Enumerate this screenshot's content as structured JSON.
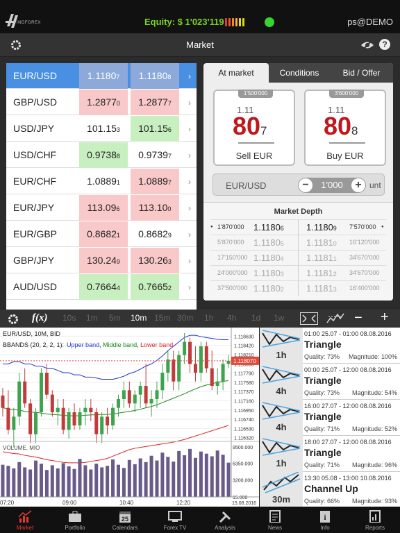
{
  "header": {
    "logo_text": "INDFOREX",
    "equity_label": "Equity: $ 1'023'119",
    "user": "ps@DEMO",
    "equity_bar_colors": [
      "#e53b2b",
      "#f05a28",
      "#f58a22",
      "#f7b51e",
      "#f2d51e",
      "#c9dd1f"
    ]
  },
  "nav": {
    "title": "Market"
  },
  "rates": [
    {
      "symbol": "EUR/USD",
      "bid_main": "1.1180",
      "bid_pip": "7",
      "ask_main": "1.1180",
      "ask_pip": "8",
      "bid_color": "none",
      "ask_color": "none",
      "selected": true
    },
    {
      "symbol": "GBP/USD",
      "bid_main": "1.2877",
      "bid_pip": "0",
      "ask_main": "1.2877",
      "ask_pip": "7",
      "bid_color": "red",
      "ask_color": "red"
    },
    {
      "symbol": "USD/JPY",
      "bid_main": "101.15",
      "bid_pip": "3",
      "ask_main": "101.15",
      "ask_pip": "6",
      "bid_color": "none",
      "ask_color": "green"
    },
    {
      "symbol": "USD/CHF",
      "bid_main": "0.9738",
      "bid_pip": "8",
      "ask_main": "0.9739",
      "ask_pip": "7",
      "bid_color": "green",
      "ask_color": "none"
    },
    {
      "symbol": "EUR/CHF",
      "bid_main": "1.0889",
      "bid_pip": "1",
      "ask_main": "1.0889",
      "ask_pip": "7",
      "bid_color": "none",
      "ask_color": "red"
    },
    {
      "symbol": "EUR/JPY",
      "bid_main": "113.09",
      "bid_pip": "6",
      "ask_main": "113.10",
      "ask_pip": "0",
      "bid_color": "red",
      "ask_color": "red"
    },
    {
      "symbol": "EUR/GBP",
      "bid_main": "0.8682",
      "bid_pip": "1",
      "ask_main": "0.8682",
      "ask_pip": "9",
      "bid_color": "red",
      "ask_color": "none"
    },
    {
      "symbol": "GBP/JPY",
      "bid_main": "130.24",
      "bid_pip": "9",
      "ask_main": "130.26",
      "ask_pip": "3",
      "bid_color": "red",
      "ask_color": "red"
    },
    {
      "symbol": "AUD/USD",
      "bid_main": "0.7664",
      "bid_pip": "4",
      "ask_main": "0.7665",
      "ask_pip": "2",
      "bid_color": "green",
      "ask_color": "green"
    }
  ],
  "order_panel": {
    "tabs": [
      "At market",
      "Conditions",
      "Bid / Offer"
    ],
    "sell": {
      "volume": "1'500'000",
      "pre": "1.11",
      "big": "80",
      "small": "7",
      "label": "Sell EUR"
    },
    "buy": {
      "volume": "3'600'000",
      "pre": "1.11",
      "big": "80",
      "small": "8",
      "label": "Buy EUR"
    },
    "amount": {
      "pair": "EUR/USD",
      "minus": "−",
      "plus": "+",
      "quantity": "1'000",
      "unit": "unt"
    }
  },
  "market_depth": {
    "title": "Market Depth",
    "rows": [
      {
        "bid_vol": "1'870'000",
        "bid_main": "1.1180",
        "bid_pip": "6",
        "ask_main": "1.1180",
        "ask_pip": "9",
        "ask_vol": "7'570'000"
      },
      {
        "bid_vol": "5'870'000",
        "bid_main": "1.1180",
        "bid_pip": "5",
        "ask_main": "1.1181",
        "ask_pip": "0",
        "ask_vol": "16'120'000"
      },
      {
        "bid_vol": "17'150'000",
        "bid_main": "1.1180",
        "bid_pip": "4",
        "ask_main": "1.1181",
        "ask_pip": "1",
        "ask_vol": "34'670'000"
      },
      {
        "bid_vol": "24'000'000",
        "bid_main": "1.1180",
        "bid_pip": "3",
        "ask_main": "1.1181",
        "ask_pip": "2",
        "ask_vol": "34'670'000"
      },
      {
        "bid_vol": "37'500'000",
        "bid_main": "1.1180",
        "bid_pip": "2",
        "ask_main": "1.1181",
        "ask_pip": "3",
        "ask_vol": "16'400'000"
      }
    ]
  },
  "chart_toolbar": {
    "fx_label": "f(x)",
    "timeframes": [
      "10s",
      "1m",
      "5m",
      "10m",
      "15m",
      "30m",
      "1h",
      "4h",
      "1d",
      "1w"
    ],
    "active_timeframe": "10m",
    "minus": "−",
    "plus": "+"
  },
  "chart_data": {
    "type": "candlestick",
    "title": "EUR/USD, 10M, BID",
    "indicator_label": "BBANDS (20, 2, 2, 1):",
    "legend": [
      {
        "name": "Upper band",
        "color": "#2233cc"
      },
      {
        "name": "Middle band",
        "color": "#1a8a1a"
      },
      {
        "name": "Lower band",
        "color": "#dd2222"
      }
    ],
    "y_ticks": [
      "1.118630",
      "1.118420",
      "1.118210",
      "1.118000",
      "1.117790",
      "1.117580",
      "1.117370",
      "1.117160",
      "1.116950",
      "1.116740",
      "1.116530",
      "1.116320"
    ],
    "current_price": "1.118070",
    "volume_label": "VOLUME, MIO",
    "volume_ticks": [
      "9500.000",
      "6350.000",
      "3200.000",
      "15.000"
    ],
    "x_ticks": [
      "07:20",
      "09:00",
      "10:40",
      "12:20"
    ],
    "date_label": "15.08.2016",
    "ylim": [
      1.1163,
      1.1187
    ],
    "candles": [
      [
        1.11728,
        1.11745,
        1.1168,
        1.117
      ],
      [
        1.117,
        1.1174,
        1.1164,
        1.1165
      ],
      [
        1.1165,
        1.117,
        1.1161,
        1.1168
      ],
      [
        1.1168,
        1.1178,
        1.1166,
        1.1176
      ],
      [
        1.1176,
        1.1179,
        1.117,
        1.1171
      ],
      [
        1.1171,
        1.1172,
        1.1162,
        1.1164
      ],
      [
        1.1164,
        1.117,
        1.1162,
        1.1169
      ],
      [
        1.1169,
        1.1179,
        1.1168,
        1.1178
      ],
      [
        1.1178,
        1.118,
        1.1172,
        1.1173
      ],
      [
        1.1173,
        1.1174,
        1.1168,
        1.1169
      ],
      [
        1.1169,
        1.1172,
        1.1166,
        1.117
      ],
      [
        1.117,
        1.1172,
        1.1164,
        1.1165
      ],
      [
        1.1165,
        1.117,
        1.1163,
        1.1169
      ],
      [
        1.1169,
        1.1171,
        1.1165,
        1.1166
      ],
      [
        1.1166,
        1.117,
        1.1165,
        1.1169
      ],
      [
        1.1169,
        1.1172,
        1.1166,
        1.117
      ],
      [
        1.117,
        1.1172,
        1.1167,
        1.1169
      ],
      [
        1.1169,
        1.117,
        1.1162,
        1.1164
      ],
      [
        1.1164,
        1.1169,
        1.1162,
        1.1168
      ],
      [
        1.1168,
        1.117,
        1.1164,
        1.1166
      ],
      [
        1.1166,
        1.1171,
        1.1165,
        1.117
      ],
      [
        1.117,
        1.1173,
        1.1168,
        1.1172
      ],
      [
        1.1172,
        1.1176,
        1.117,
        1.1174
      ],
      [
        1.1174,
        1.1176,
        1.117,
        1.1171
      ],
      [
        1.1171,
        1.1174,
        1.1169,
        1.1173
      ],
      [
        1.1173,
        1.1176,
        1.117,
        1.1175
      ],
      [
        1.1175,
        1.118,
        1.117,
        1.1171
      ],
      [
        1.1171,
        1.1174,
        1.1168,
        1.1172
      ],
      [
        1.1172,
        1.1176,
        1.117,
        1.1174
      ],
      [
        1.1174,
        1.118,
        1.1172,
        1.1178
      ],
      [
        1.1178,
        1.1183,
        1.1176,
        1.1181
      ],
      [
        1.1181,
        1.1183,
        1.1174,
        1.1176
      ],
      [
        1.1176,
        1.1183,
        1.1174,
        1.1182
      ],
      [
        1.1182,
        1.1187,
        1.118,
        1.1185
      ],
      [
        1.1185,
        1.1186,
        1.1178,
        1.118
      ],
      [
        1.118,
        1.1184,
        1.1176,
        1.1178
      ],
      [
        1.1178,
        1.1185,
        1.1176,
        1.1184
      ],
      [
        1.1184,
        1.1185,
        1.1178,
        1.1179
      ],
      [
        1.1179,
        1.1183,
        1.1174,
        1.1175
      ],
      [
        1.1175,
        1.1179,
        1.1173,
        1.1176
      ],
      [
        1.1176,
        1.1181,
        1.1174,
        1.118
      ],
      [
        1.118,
        1.1182,
        1.1179,
        1.11807
      ]
    ],
    "volumes": [
      6100,
      5900,
      5400,
      6600,
      5600,
      5200,
      6900,
      6300,
      5100,
      6000,
      5400,
      6400,
      5800,
      5300,
      7200,
      6000,
      5200,
      6300,
      5600,
      5900,
      7100,
      6100,
      5500,
      7000,
      6200,
      7300,
      6600,
      7800,
      6900,
      8400,
      7600,
      6700,
      8700,
      7900,
      9100,
      7400,
      8600,
      8200,
      7700,
      8800,
      8000,
      6500
    ],
    "bands": {
      "upper": [
        1.118,
        1.118,
        1.11805,
        1.11805,
        1.118,
        1.118,
        1.11795,
        1.11795,
        1.1179,
        1.1179,
        1.11785,
        1.1178,
        1.1178,
        1.11775,
        1.11775,
        1.1177,
        1.1177,
        1.11768,
        1.11765,
        1.11765,
        1.11765,
        1.11768,
        1.11772,
        1.11778,
        1.11782,
        1.11788,
        1.11795,
        1.118,
        1.11808,
        1.11818,
        1.1183,
        1.1184,
        1.1185,
        1.1186,
        1.11865,
        1.11865,
        1.11862,
        1.1186,
        1.11858,
        1.11856,
        1.11855,
        1.11855
      ],
      "middle": [
        1.117,
        1.11698,
        1.11696,
        1.11695,
        1.11692,
        1.1169,
        1.1169,
        1.11688,
        1.11686,
        1.11685,
        1.11684,
        1.11683,
        1.11682,
        1.11682,
        1.11682,
        1.11683,
        1.11684,
        1.11684,
        1.11685,
        1.11685,
        1.11686,
        1.11688,
        1.1169,
        1.11692,
        1.11694,
        1.11697,
        1.117,
        1.11703,
        1.11707,
        1.11712,
        1.11717,
        1.11722,
        1.11727,
        1.11732,
        1.11738,
        1.11743,
        1.11748,
        1.11752,
        1.11755,
        1.11758,
        1.1176,
        1.11762
      ],
      "lower": [
        1.116,
        1.11598,
        1.11596,
        1.11595,
        1.11592,
        1.1159,
        1.11588,
        1.11585,
        1.11582,
        1.1158,
        1.11578,
        1.11576,
        1.11575,
        1.11575,
        1.11575,
        1.11576,
        1.11578,
        1.1158,
        1.11582,
        1.11585,
        1.1159,
        1.11595,
        1.116,
        1.11605,
        1.11608,
        1.1161,
        1.11612,
        1.11614,
        1.11616,
        1.11618,
        1.1162,
        1.11622,
        1.11625,
        1.11628,
        1.11632,
        1.11636,
        1.1164,
        1.11644,
        1.11648,
        1.11652,
        1.11656,
        1.1166
      ]
    }
  },
  "patterns": [
    {
      "timeframe": "1h",
      "time": "01:00 25.07 - 01:00 08.08.2016",
      "name": "Triangle",
      "quality": "Quality: 73%",
      "magnitude": "Magnitude: 100%"
    },
    {
      "timeframe": "4h",
      "time": "00:00 25.07 - 12:00 08.08.2016",
      "name": "Triangle",
      "quality": "Quality: 73%",
      "magnitude": "Magnitude: 54%"
    },
    {
      "timeframe": "4h",
      "time": "16:00 27.07 - 12:00 08.08.2016",
      "name": "Triangle",
      "quality": "Quality: 71%",
      "magnitude": "Magnitude: 52%"
    },
    {
      "timeframe": "1h",
      "time": "18:00 27.07 - 12:00 08.08.2016",
      "name": "Triangle",
      "quality": "Quality: 71%",
      "magnitude": "Magnitude: 96%"
    },
    {
      "timeframe": "30m",
      "time": "13:30 05.08 - 13:00 10.08.2016",
      "name": "Channel Up",
      "quality": "Quality: 66%",
      "magnitude": "Magnitude: 93%"
    }
  ],
  "tabbar": [
    {
      "label": "Market",
      "icon": "chart-icon",
      "active": true
    },
    {
      "label": "Portfolio",
      "icon": "briefcase-icon"
    },
    {
      "label": "Calendars",
      "icon": "calendar-icon",
      "day": "25"
    },
    {
      "label": "Forex TV",
      "icon": "tv-icon"
    },
    {
      "label": "Analysis",
      "icon": "tools-icon"
    },
    {
      "label": "News",
      "icon": "news-icon"
    },
    {
      "label": "Info",
      "icon": "info-icon",
      "glyph": "i"
    },
    {
      "label": "Reports",
      "icon": "reports-icon"
    }
  ]
}
